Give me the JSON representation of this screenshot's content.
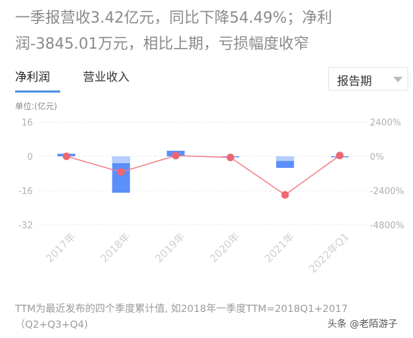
{
  "headline": "一季报营收3.42亿元，同比下降54.49%；净利润-3845.01万元，相比上期，亏损幅度收窄",
  "tabs": [
    {
      "label": "净利润",
      "active": true
    },
    {
      "label": "营业收入",
      "active": false
    }
  ],
  "period_select": {
    "value": "报告期"
  },
  "unit_label": "单位:(亿元)",
  "chart_data": {
    "type": "bar",
    "categories": [
      "2017年",
      "2018年",
      "2019年",
      "2020年",
      "2021年",
      "2022年Q1"
    ],
    "left_axis": {
      "ticks": [
        "16",
        "0",
        "-16",
        "-32"
      ],
      "ylim": [
        -32,
        16
      ]
    },
    "right_axis": {
      "ticks": [
        "2400%",
        "0%",
        "-2400%",
        "-4800%"
      ],
      "ylim": [
        -4800,
        2400
      ]
    },
    "series": [
      {
        "kind": "bar",
        "values": [
          1.2,
          -17.0,
          2.6,
          -0.4,
          -5.4,
          -0.38
        ]
      },
      {
        "kind": "line",
        "values": [
          0,
          -1100,
          50,
          -80,
          -2700,
          60
        ]
      }
    ],
    "colors": {
      "bar": "#5b8ff9",
      "bar_light": "#c6d8fb",
      "line": "#f27b84",
      "point": "#ee6673",
      "grid": "#e8e8e8",
      "tick": "#b0b0b0",
      "xlabel": "#cfcfcf"
    },
    "grid": true
  },
  "footnote": "TTM为最近发布的四个季度累计值, 如2018年一季度TTM=2018Q1+2017（Q2+Q3+Q4)",
  "watermark": "头条 @老陌游子"
}
